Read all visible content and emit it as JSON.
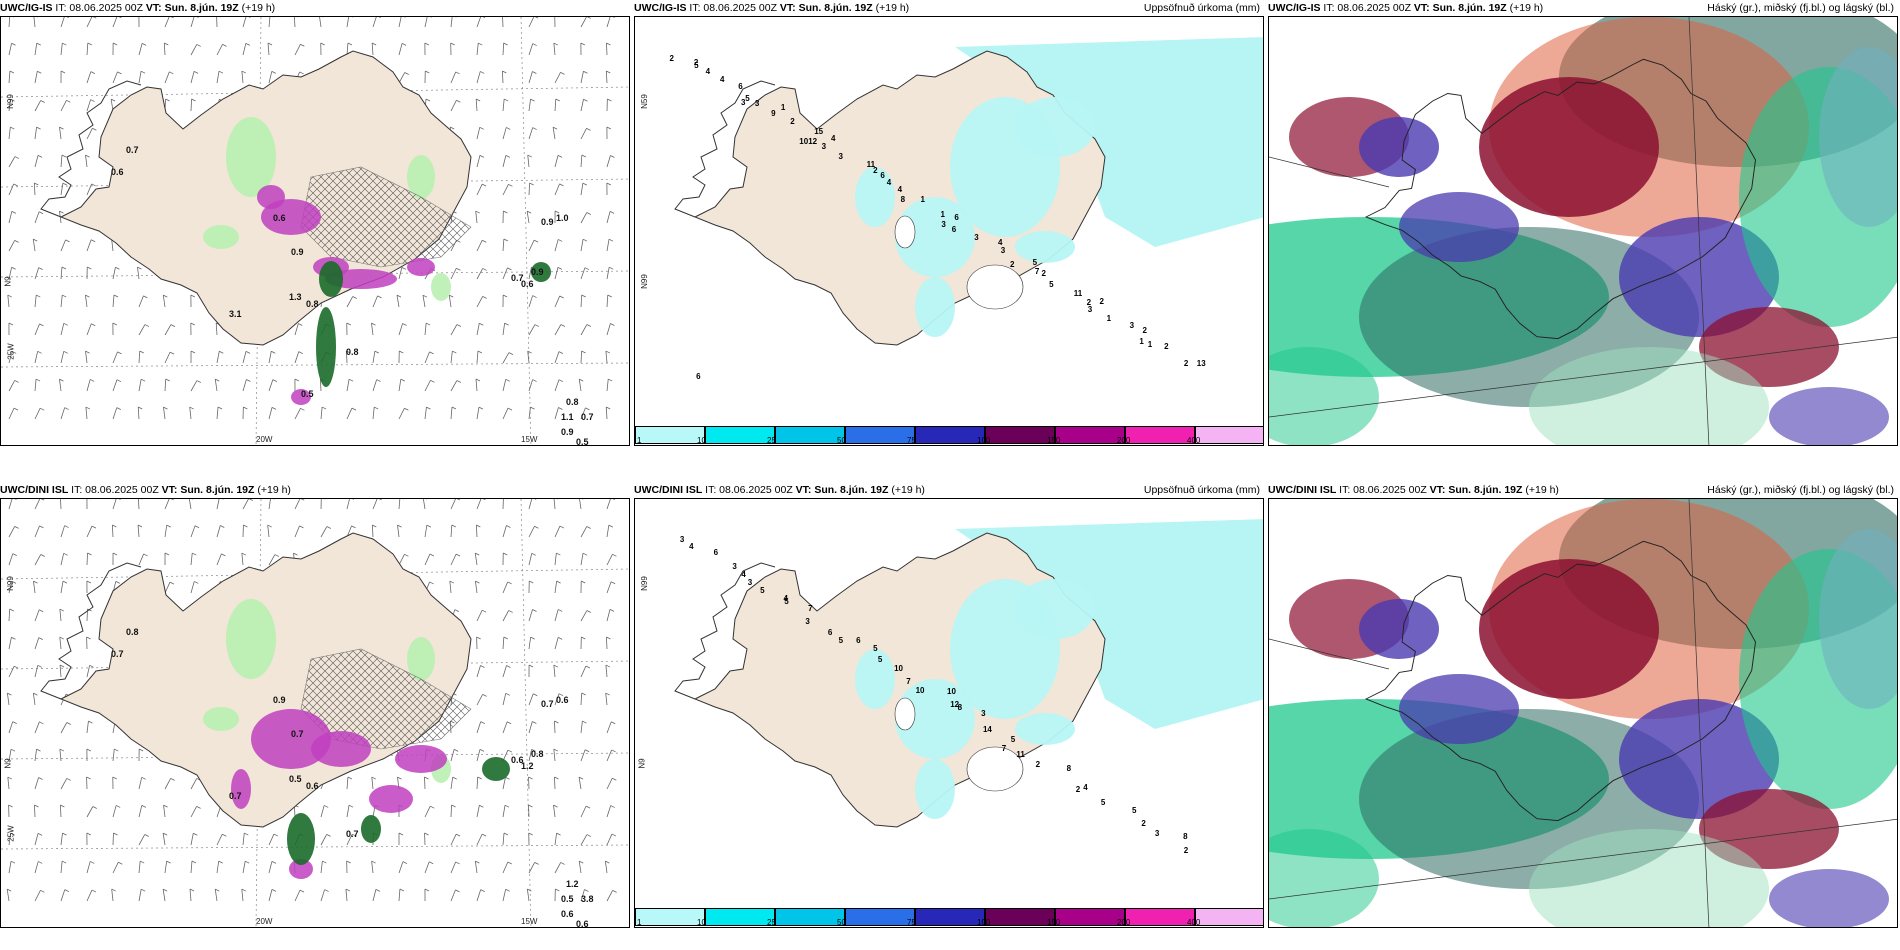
{
  "palette": {
    "land": "#f2e6d8",
    "water_light": "#b7f5f5",
    "dark_red": "#8b1030",
    "purple": "#4a3ab0",
    "green": "#1ec88c",
    "dark_teal": "#2f6a60",
    "magenta": "#c040c0",
    "dark_green": "#1a6a2a"
  },
  "legend": {
    "colors": [
      "#b8f8f8",
      "#00e8f0",
      "#00c4e8",
      "#2a6ee8",
      "#2828b8",
      "#6a0058",
      "#a80088",
      "#f020b0",
      "#f4b4f4"
    ],
    "ticks": [
      "1",
      "10",
      "25",
      "50",
      "75",
      "100",
      "150",
      "200",
      "400"
    ]
  },
  "rows": [
    {
      "wind": {
        "model": "UWC/IG-IS",
        "it": "IT: 08.06.2025 00Z",
        "vt": "VT: Sun. 8.jún. 19Z",
        "lead": "(+19 h)",
        "lat_labels": [
          "N99",
          "N9",
          "25W"
        ],
        "lon_labels": [
          "20W",
          "15W"
        ],
        "values": [
          "0.7",
          "0.6",
          "0.6",
          "0.9",
          "1.3",
          "0.8",
          "3.1",
          "0.8",
          "0.7",
          "0.6",
          "0.9",
          "0.9",
          "1.0",
          "1.1",
          "0.9",
          "0.8",
          "0.7",
          "0.5",
          "0.5"
        ]
      },
      "precip": {
        "model": "UWC/IG-IS",
        "it": "IT: 08.06.2025 00Z",
        "vt": "VT: Sun. 8.jún. 19Z",
        "lead": "(+19 h)",
        "title": "Uppsöfnuð úrkoma (mm)",
        "lat_labels": [
          "N59",
          "N99"
        ],
        "values": [
          "2",
          "3",
          "1012",
          "6",
          "3",
          "2",
          "2",
          "1",
          "2",
          "3",
          "3",
          "4",
          "6",
          "7",
          "3",
          "2",
          "4",
          "9",
          "3",
          "8",
          "3",
          "2",
          "1",
          "2",
          "4",
          "2",
          "11",
          "1",
          "4",
          "5",
          "3",
          "13",
          "6",
          "15",
          "2",
          "1",
          "3",
          "11",
          "2",
          "6",
          "5",
          "4",
          "4",
          "6",
          "5",
          "2",
          "1",
          "5",
          "1"
        ]
      },
      "cloud": {
        "model": "UWC/IG-IS",
        "it": "IT: 08.06.2025 00Z",
        "vt": "VT: Sun. 8.jún. 19Z",
        "lead": "(+19 h)",
        "title": "Háský (gr.), miðský (fj.bl.) og lágský (bl.)"
      }
    },
    {
      "wind": {
        "model": "UWC/DINI ISL",
        "it": "IT: 08.06.2025 00Z",
        "vt": "VT: Sun. 8.jún. 19Z",
        "lead": "(+19 h)",
        "lat_labels": [
          "N99",
          "N9",
          "25W"
        ],
        "lon_labels": [
          "20W",
          "15W"
        ],
        "values": [
          "0.8",
          "0.7",
          "0.9",
          "0.7",
          "0.5",
          "0.6",
          "0.7",
          "0.7",
          "0.6",
          "1.2",
          "0.8",
          "0.7",
          "0.6",
          "0.5",
          "0.6",
          "1.2",
          "3.8",
          "0.6"
        ]
      },
      "precip": {
        "model": "UWC/DINI ISL",
        "it": "IT: 08.06.2025 00Z",
        "vt": "VT: Sun. 8.jún. 19Z",
        "lead": "(+19 h)",
        "title": "Uppsöfnuð úrkoma (mm)",
        "lat_labels": [
          "N99",
          "N9"
        ],
        "values": [
          "3",
          "3",
          "3",
          "5",
          "12",
          "7",
          "2",
          "2",
          "4",
          "5",
          "6",
          "10",
          "8",
          "11",
          "4",
          "3",
          "6",
          "4",
          "5",
          "7",
          "3",
          "2",
          "5",
          "8",
          "3",
          "5",
          "6",
          "10",
          "14",
          "8",
          "5",
          "2",
          "4",
          "7",
          "5",
          "10",
          "5"
        ]
      },
      "cloud": {
        "model": "UWC/DINI ISL",
        "it": "IT: 08.06.2025 00Z",
        "vt": "VT: Sun. 8.jún. 19Z",
        "lead": "(+19 h)",
        "title": "Háský (gr.), miðský (fj.bl.) og lágský (bl.)"
      }
    }
  ]
}
